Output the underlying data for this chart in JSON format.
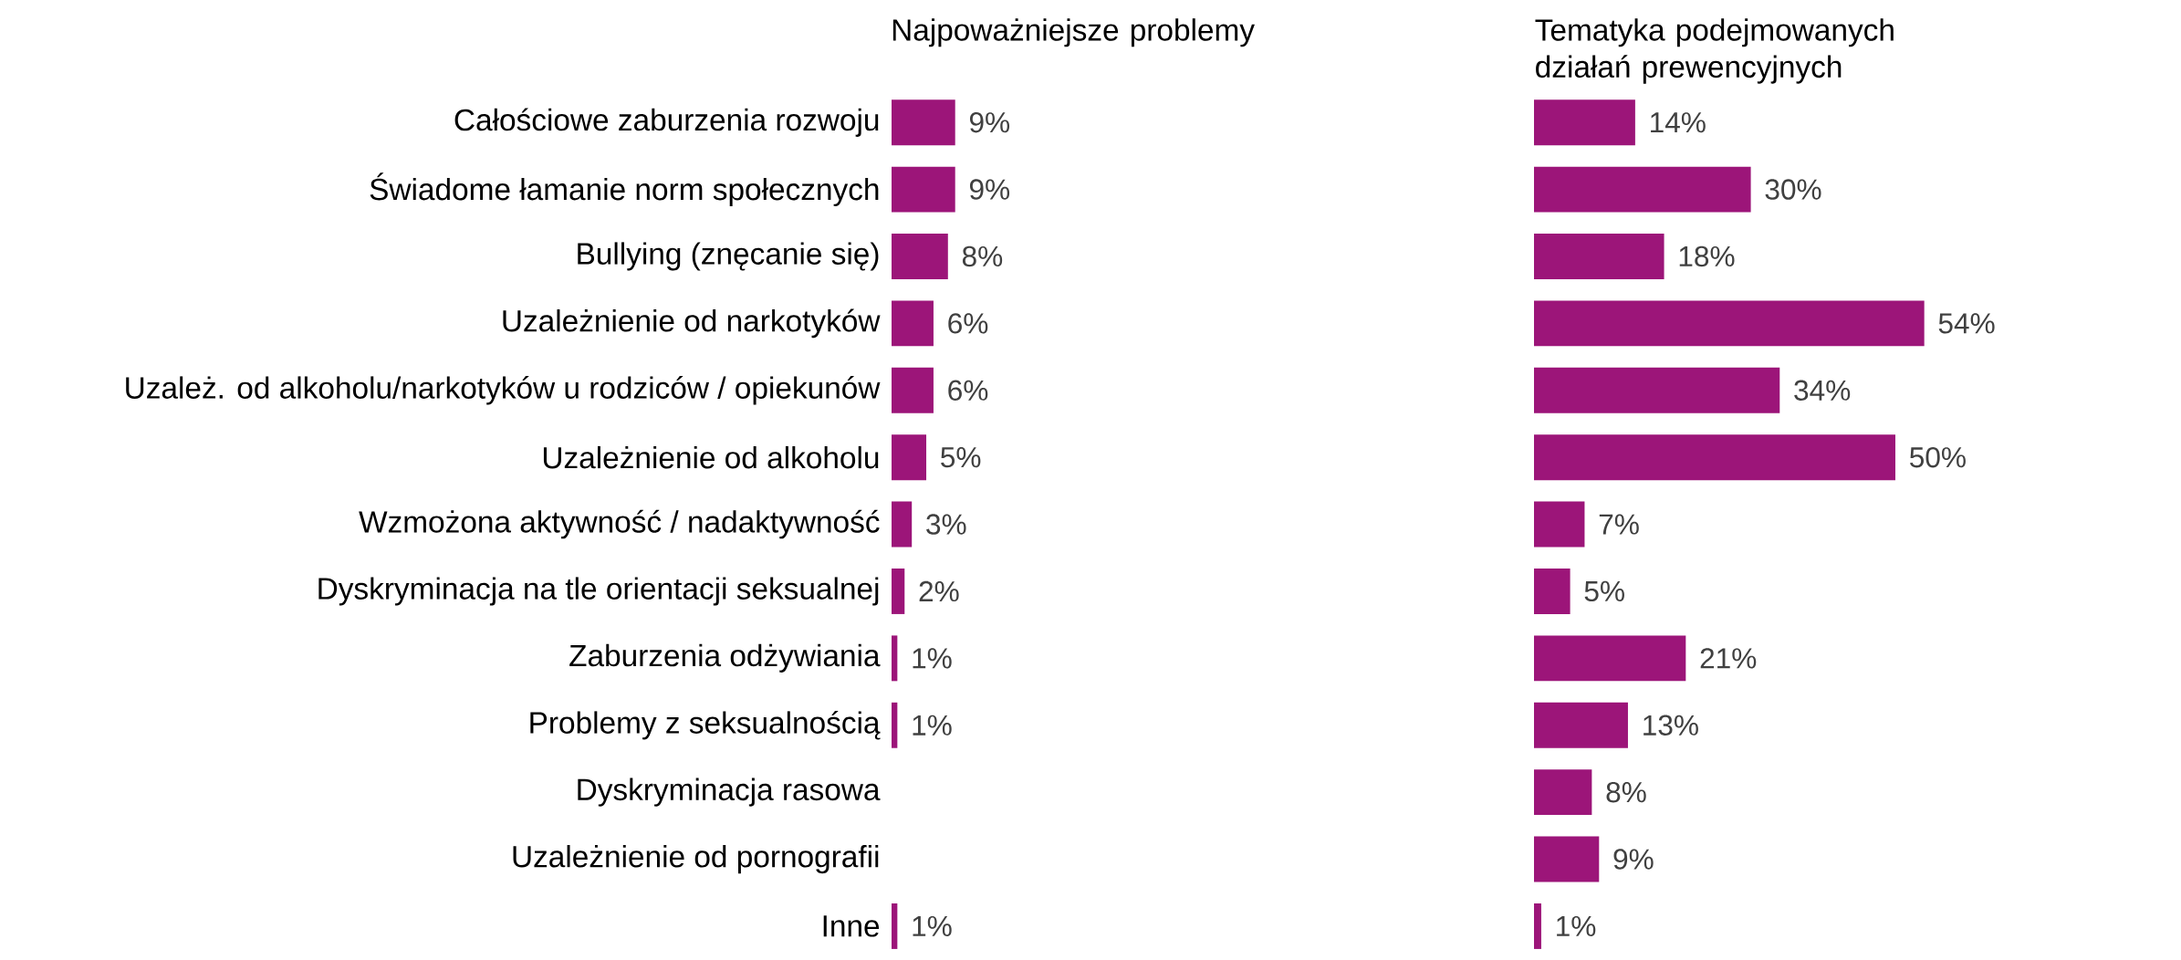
{
  "chart_data": [
    {
      "type": "bar",
      "orientation": "horizontal",
      "title": "Najpoważniejsze problemy",
      "categories": [
        "Całościowe zaburzenia rozwoju",
        "Świadome łamanie norm społecznych",
        "Bullying (znęcanie się)",
        "Uzależnienie od narkotyków",
        "Uzależ. od alkoholu/narkotyków u rodziców / opiekunów",
        "Uzależnienie od alkoholu",
        "Wzmożona aktywność / nadaktywność",
        "Dyskryminacja na tle orientacji seksualnej",
        "Zaburzenia odżywiania",
        "Problemy z seksualnością",
        "Dyskryminacja rasowa",
        "Uzależnienie od pornografii",
        "Inne"
      ],
      "values": [
        9,
        9,
        8,
        6,
        6,
        5,
        3,
        2,
        1,
        1,
        null,
        null,
        1
      ],
      "value_labels": [
        "9%",
        "9%",
        "8%",
        "6%",
        "6%",
        "5%",
        "3%",
        "2%",
        "1%",
        "1%",
        null,
        null,
        "1%"
      ],
      "color": "#9c1579",
      "tick_labels": "y"
    },
    {
      "type": "bar",
      "orientation": "horizontal",
      "title": "Tematyka podejmowanych działań prewencyjnych",
      "categories": [
        null,
        null,
        null,
        null,
        null,
        null,
        null,
        null,
        null,
        null,
        null,
        null,
        null
      ],
      "values": [
        14,
        30,
        18,
        54,
        34,
        50,
        7,
        5,
        21,
        13,
        8,
        9,
        1
      ],
      "value_labels": [
        "14%",
        "30%",
        "18%",
        "54%",
        "34%",
        "50%",
        "7%",
        "5%",
        "21%",
        "13%",
        "8%",
        "9%",
        "1%"
      ],
      "color": "#9c1579",
      "tick_labels": false
    }
  ]
}
